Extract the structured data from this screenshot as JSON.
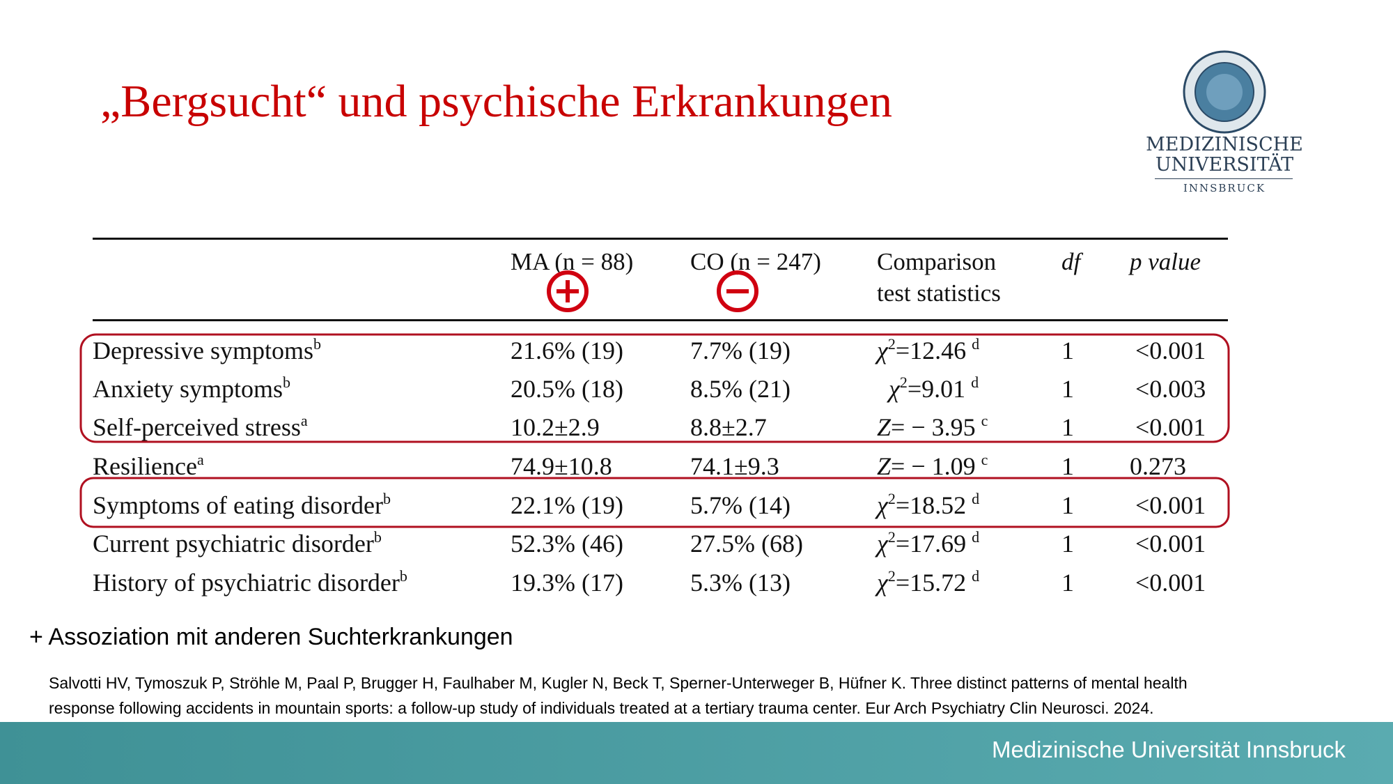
{
  "header": {
    "title": "„Bergsucht“  und psychische Erkrankungen"
  },
  "logo": {
    "line1": "MEDIZINISCHE",
    "line2": "UNIVERSITÄT",
    "line3": "INNSBRUCK"
  },
  "table": {
    "columns": [
      "MA (n = 88)",
      "CO (n = 247)",
      "Comparison",
      "test statistics",
      "df",
      "p value"
    ],
    "rows": [
      {
        "label": "Depressive symptoms",
        "label_sup": "b",
        "ma": "21.6% (19)",
        "co": "7.7% (19)",
        "stat_symbol": "χ",
        "stat_exp": "2",
        "stat_value": "=12.46",
        "stat_note": "d",
        "df": "1",
        "p": "<0.001"
      },
      {
        "label": "Anxiety symptoms",
        "label_sup": "b",
        "ma": "20.5% (18)",
        "co": "8.5% (21)",
        "stat_symbol": "χ",
        "stat_exp": "2",
        "stat_value": "=9.01",
        "stat_note": "d",
        "df": "1",
        "p": "<0.003"
      },
      {
        "label": "Self-perceived stress",
        "label_sup": "a",
        "ma": "10.2±2.9",
        "co": "8.8±2.7",
        "stat_symbol": "Z",
        "stat_value": "= − 3.95",
        "stat_note": "c",
        "df": "1",
        "p": "<0.001"
      },
      {
        "label": "Resilience",
        "label_sup": "a",
        "ma": "74.9±10.8",
        "co": "74.1±9.3",
        "stat_symbol": "Z",
        "stat_value": "= − 1.09",
        "stat_note": "c",
        "df": "1",
        "p": "0.273"
      },
      {
        "label": "Symptoms of eating disorder",
        "label_sup": "b",
        "ma": "22.1% (19)",
        "co": "5.7% (14)",
        "stat_symbol": "χ",
        "stat_exp": "2",
        "stat_value": "=18.52",
        "stat_note": "d",
        "df": "1",
        "p": "<0.001"
      },
      {
        "label": "Current psychiatric disorder",
        "label_sup": "b",
        "ma": "52.3% (46)",
        "co": "27.5% (68)",
        "stat_symbol": "χ",
        "stat_exp": "2",
        "stat_value": "=17.69",
        "stat_note": "d",
        "df": "1",
        "p": "<0.001"
      },
      {
        "label": "History of psychiatric disorder",
        "label_sup": "b",
        "ma": "19.3% (17)",
        "co": "5.3% (13)",
        "stat_symbol": "χ",
        "stat_exp": "2",
        "stat_value": "=15.72",
        "stat_note": "d",
        "df": "1",
        "p": "<0.001"
      }
    ]
  },
  "note": "+ Assoziation mit anderen Suchterkrankungen",
  "citation": {
    "line1": "Salvotti HV, Tymoszuk P, Ströhle M, Paal P, Brugger H, Faulhaber M, Kugler N, Beck T, Sperner-Unterweger B, Hüfner K. Three distinct patterns of mental health",
    "line2": "response following accidents in mountain sports: a follow-up study of individuals treated at a tertiary trauma center. Eur Arch Psychiatry Clin Neurosci. 2024."
  },
  "footer": {
    "text": "Medizinische Universität Innsbruck"
  }
}
